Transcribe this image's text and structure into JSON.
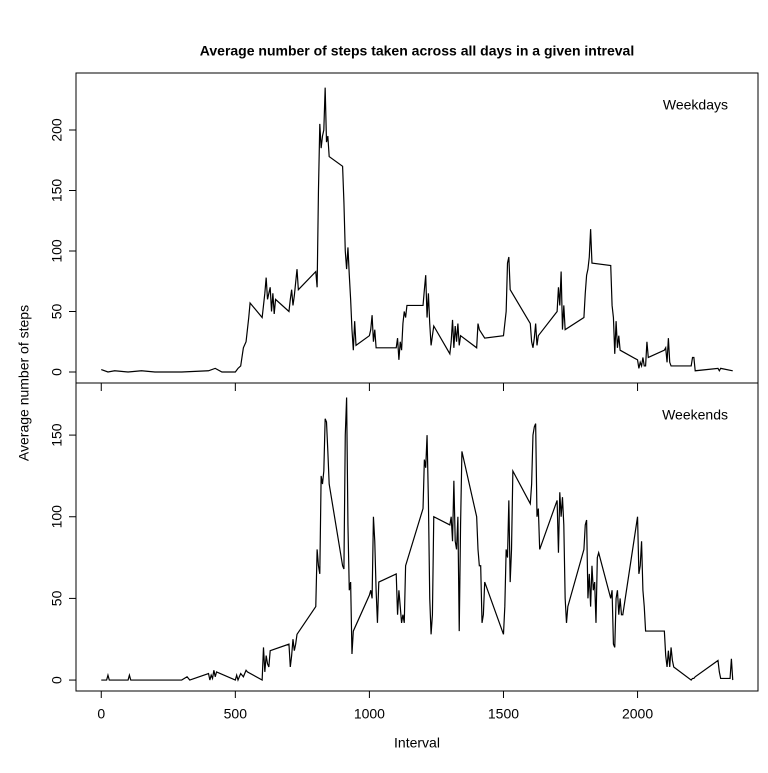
{
  "chart_data": {
    "type": "line",
    "title": "Average number of steps taken across all days in a given intreval",
    "xlabel": "Interval",
    "ylabel": "Average number of steps",
    "xlim": [
      -94.2,
      2449.2
    ],
    "xticks": [
      0,
      500,
      1000,
      1500,
      2000
    ],
    "panels": [
      {
        "name": "Weekdays",
        "color": "#000000",
        "ylim": [
          -9.1,
          247.1
        ],
        "yticks": [
          0,
          50,
          100,
          150,
          200
        ],
        "x": [
          0,
          25,
          50,
          100,
          150,
          200,
          300,
          400,
          425,
          450,
          500,
          510,
          520,
          530,
          540,
          550,
          555,
          600,
          605,
          610,
          615,
          620,
          630,
          635,
          640,
          645,
          650,
          700,
          705,
          710,
          715,
          720,
          730,
          735,
          800,
          805,
          810,
          815,
          820,
          825,
          830,
          835,
          840,
          845,
          850,
          900,
          905,
          910,
          915,
          920,
          925,
          930,
          935,
          940,
          945,
          950,
          1000,
          1005,
          1010,
          1015,
          1020,
          1025,
          1100,
          1105,
          1110,
          1115,
          1120,
          1125,
          1130,
          1135,
          1140,
          1200,
          1205,
          1210,
          1215,
          1220,
          1225,
          1230,
          1235,
          1240,
          1300,
          1305,
          1310,
          1315,
          1320,
          1325,
          1330,
          1335,
          1340,
          1400,
          1405,
          1410,
          1430,
          1500,
          1505,
          1510,
          1515,
          1520,
          1525,
          1600,
          1605,
          1610,
          1615,
          1620,
          1625,
          1630,
          1700,
          1705,
          1710,
          1715,
          1720,
          1725,
          1730,
          1800,
          1805,
          1810,
          1815,
          1820,
          1825,
          1830,
          1900,
          1905,
          1910,
          1915,
          1920,
          1925,
          1930,
          1935,
          2000,
          2005,
          2010,
          2015,
          2020,
          2025,
          2030,
          2035,
          2040,
          2100,
          2105,
          2110,
          2115,
          2120,
          2125,
          2200,
          2205,
          2210,
          2215,
          2300,
          2305,
          2310,
          2355
        ],
        "values": [
          2,
          0,
          1,
          0,
          1,
          0,
          0,
          1,
          3,
          0,
          0,
          3,
          5,
          20,
          25,
          45,
          57,
          45,
          55,
          65,
          78,
          60,
          70,
          50,
          65,
          48,
          60,
          50,
          60,
          68,
          55,
          63,
          85,
          68,
          83,
          70,
          150,
          205,
          185,
          195,
          200,
          235,
          190,
          195,
          178,
          170,
          140,
          100,
          85,
          103,
          80,
          60,
          35,
          18,
          42,
          22,
          30,
          35,
          47,
          25,
          35,
          20,
          20,
          28,
          10,
          25,
          18,
          40,
          50,
          45,
          55,
          55,
          68,
          80,
          45,
          65,
          40,
          22,
          30,
          38,
          15,
          25,
          43,
          20,
          38,
          25,
          40,
          22,
          30,
          20,
          40,
          35,
          28,
          30,
          40,
          50,
          90,
          95,
          68,
          40,
          25,
          20,
          28,
          40,
          22,
          30,
          50,
          70,
          55,
          83,
          35,
          55,
          35,
          45,
          65,
          80,
          85,
          95,
          118,
          90,
          88,
          55,
          45,
          15,
          42,
          20,
          30,
          18,
          10,
          3,
          8,
          5,
          12,
          5,
          5,
          25,
          12,
          18,
          20,
          8,
          28,
          8,
          5,
          5,
          12,
          12,
          1,
          3,
          1,
          3,
          1
        ]
      },
      {
        "name": "Weekends",
        "color": "#000000",
        "ylim": [
          -6.7,
          181.9
        ],
        "yticks": [
          0,
          50,
          100,
          150
        ],
        "x": [
          0,
          20,
          25,
          30,
          100,
          105,
          110,
          200,
          300,
          320,
          330,
          400,
          405,
          410,
          415,
          420,
          425,
          430,
          500,
          505,
          510,
          515,
          520,
          530,
          540,
          545,
          600,
          605,
          610,
          615,
          620,
          625,
          630,
          700,
          705,
          710,
          715,
          720,
          725,
          730,
          800,
          805,
          810,
          815,
          820,
          825,
          830,
          835,
          840,
          845,
          850,
          900,
          905,
          910,
          915,
          920,
          925,
          930,
          935,
          940,
          1000,
          1005,
          1010,
          1015,
          1020,
          1025,
          1030,
          1035,
          1100,
          1105,
          1110,
          1115,
          1120,
          1125,
          1130,
          1135,
          1200,
          1205,
          1210,
          1215,
          1220,
          1225,
          1230,
          1235,
          1240,
          1300,
          1305,
          1310,
          1315,
          1320,
          1325,
          1330,
          1335,
          1340,
          1345,
          1400,
          1405,
          1410,
          1415,
          1420,
          1425,
          1430,
          1500,
          1505,
          1510,
          1515,
          1520,
          1525,
          1530,
          1535,
          1600,
          1605,
          1610,
          1615,
          1620,
          1625,
          1630,
          1635,
          1700,
          1705,
          1710,
          1715,
          1720,
          1725,
          1730,
          1735,
          1740,
          1800,
          1805,
          1810,
          1815,
          1820,
          1825,
          1830,
          1835,
          1840,
          1845,
          1850,
          1855,
          1900,
          1905,
          1910,
          1915,
          1920,
          1925,
          1930,
          1935,
          1940,
          1945,
          2000,
          2005,
          2010,
          2015,
          2020,
          2025,
          2030,
          2100,
          2105,
          2110,
          2115,
          2120,
          2125,
          2130,
          2135,
          2200,
          2205,
          2210,
          2215,
          2300,
          2305,
          2310,
          2345,
          2350,
          2355
        ],
        "values": [
          0,
          0,
          3,
          0,
          0,
          3,
          0,
          0,
          0,
          2,
          0,
          4,
          0,
          3,
          1,
          6,
          2,
          5,
          0,
          3,
          0,
          2,
          4,
          2,
          6,
          5,
          0,
          20,
          5,
          15,
          10,
          8,
          18,
          22,
          8,
          15,
          25,
          18,
          22,
          28,
          45,
          80,
          70,
          65,
          125,
          120,
          128,
          160,
          158,
          140,
          120,
          70,
          68,
          150,
          173,
          95,
          55,
          60,
          16,
          30,
          52,
          55,
          50,
          100,
          85,
          55,
          35,
          60,
          65,
          40,
          55,
          45,
          35,
          40,
          35,
          70,
          105,
          135,
          130,
          150,
          110,
          50,
          28,
          40,
          100,
          95,
          100,
          85,
          122,
          85,
          80,
          100,
          30,
          95,
          140,
          100,
          80,
          70,
          70,
          35,
          40,
          60,
          28,
          45,
          80,
          75,
          110,
          60,
          80,
          128,
          108,
          120,
          150,
          155,
          157,
          100,
          105,
          80,
          110,
          78,
          115,
          100,
          112,
          95,
          50,
          35,
          45,
          80,
          95,
          98,
          50,
          65,
          45,
          70,
          55,
          60,
          35,
          75,
          78,
          50,
          55,
          22,
          20,
          50,
          55,
          40,
          50,
          40,
          40,
          100,
          65,
          70,
          85,
          55,
          45,
          30,
          30,
          15,
          8,
          18,
          8,
          20,
          12,
          8,
          0,
          1,
          1,
          2,
          12,
          5,
          1,
          1,
          13,
          0
        ]
      }
    ]
  }
}
